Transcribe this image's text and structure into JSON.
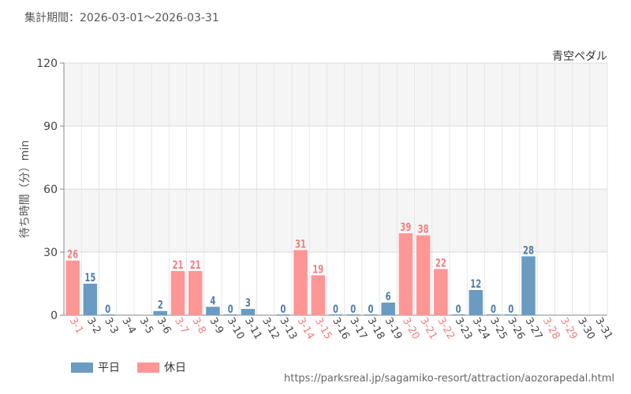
{
  "period_label": "集計期間：2026-03-01～2026-03-31",
  "source_url": "https://parksreal.jp/sagamiko-resort/attraction/aozorapedal.html",
  "colors": {
    "weekday": "#6a9bc3",
    "holiday": "#ff9696",
    "weekday_text": "#4f7ea8",
    "holiday_text": "#f08080"
  },
  "chart_data": {
    "type": "bar",
    "title": "青空ペダル",
    "ylabel": "待ち時間（分）min",
    "xlabel": "",
    "ylim": [
      0,
      120
    ],
    "yticks": [
      "0",
      "30",
      "60",
      "90",
      "120"
    ],
    "grid": true,
    "legend_position": "bottom-left",
    "categories": [
      "3-1",
      "3-2",
      "3-3",
      "3-4",
      "3-5",
      "3-6",
      "3-7",
      "3-8",
      "3-9",
      "3-10",
      "3-11",
      "3-12",
      "3-13",
      "3-14",
      "3-15",
      "3-16",
      "3-17",
      "3-18",
      "3-19",
      "3-20",
      "3-21",
      "3-22",
      "3-23",
      "3-24",
      "3-25",
      "3-26",
      "3-27",
      "3-28",
      "3-29",
      "3-30",
      "3-31"
    ],
    "values": [
      26,
      15,
      0,
      null,
      null,
      2,
      21,
      21,
      4,
      0,
      3,
      null,
      0,
      31,
      19,
      0,
      0,
      0,
      6,
      39,
      38,
      22,
      0,
      12,
      0,
      0,
      28,
      null,
      null,
      null,
      null
    ],
    "day_type": [
      "holiday",
      "weekday",
      "weekday",
      "weekday",
      "weekday",
      "weekday",
      "holiday",
      "holiday",
      "weekday",
      "weekday",
      "weekday",
      "weekday",
      "weekday",
      "holiday",
      "holiday",
      "weekday",
      "weekday",
      "weekday",
      "weekday",
      "holiday",
      "holiday",
      "holiday",
      "weekday",
      "weekday",
      "weekday",
      "weekday",
      "weekday",
      "holiday",
      "holiday",
      "weekday",
      "weekday"
    ],
    "legend": [
      {
        "key": "weekday",
        "label": "平日"
      },
      {
        "key": "holiday",
        "label": "休日"
      }
    ]
  }
}
